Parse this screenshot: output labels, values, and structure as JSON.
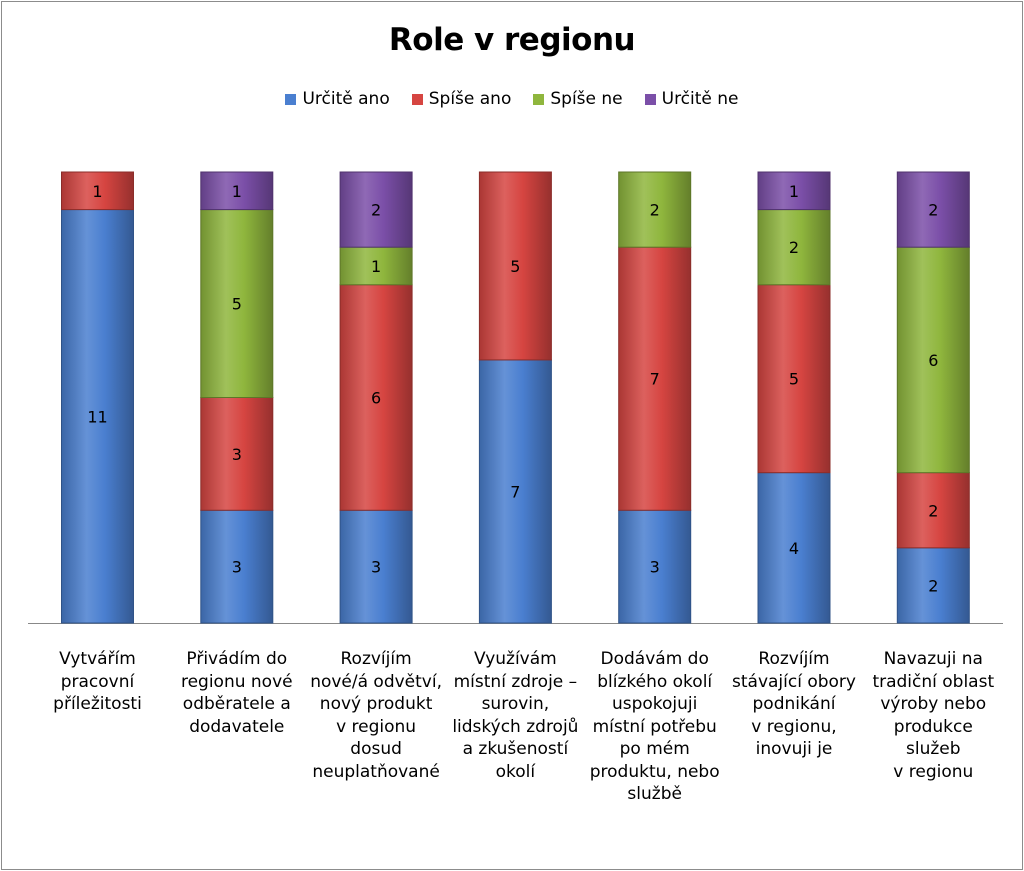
{
  "chart_data": {
    "type": "bar",
    "stacked": true,
    "title": "Role v regionu",
    "legend_position": "top",
    "grid": false,
    "ylim": [
      0,
      12
    ],
    "categories": [
      "Vytvářím\npracovní\npříležitosti",
      "Přivádím do\nregionu nové\nodběratele a\ndodavatele",
      "Rozvíjím\nnové/á odvětví,\nnový produkt\nv regionu\ndosud\nneuplatňované",
      "Využívám\nmístní zdroje –\nsurovin,\nlidských zdrojů\na zkušeností\nokolí",
      "Dodávám do\nblízkého okolí\nuspokojuji\nmístní potřebu\npo mém\nproduktu, nebo\nslužbě",
      "Rozvíjím\nstávající obory\npodnikání\nv regionu,\ninovuji je",
      "Navazuji na\ntradiční oblast\nvýroby nebo\nprodukce\nslužeb\nv regionu"
    ],
    "series": [
      {
        "name": "Určitě ano",
        "color": "#4a7fd0",
        "values": [
          11,
          3,
          3,
          7,
          3,
          4,
          2
        ]
      },
      {
        "name": "Spíše ano",
        "color": "#d64541",
        "values": [
          1,
          3,
          6,
          5,
          7,
          5,
          2
        ]
      },
      {
        "name": "Spíše ne",
        "color": "#8fb63d",
        "values": [
          0,
          5,
          1,
          0,
          2,
          2,
          6
        ]
      },
      {
        "name": "Určitě ne",
        "color": "#7b4fa8",
        "values": [
          0,
          1,
          2,
          0,
          0,
          1,
          2
        ]
      }
    ]
  }
}
